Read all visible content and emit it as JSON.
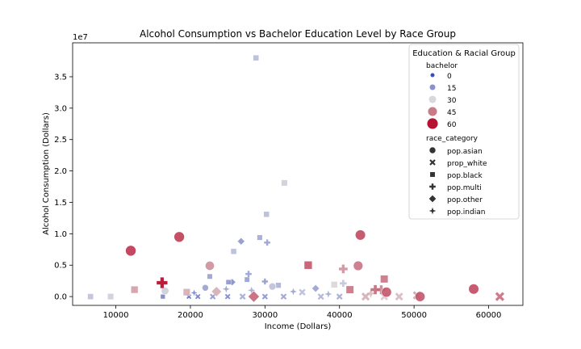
{
  "chart_data": {
    "type": "scatter",
    "title": "Alcohol Consumption vs Bachelor Education Level by Race Group",
    "xlabel": "Income (Dollars)",
    "ylabel": "Alcohol Consumption (Dollars)",
    "y_offset_label": "1e7",
    "xlim": [
      4200,
      64600
    ],
    "ylim": [
      -1400000,
      40400000
    ],
    "y_scale": 10000000,
    "x_ticks": [
      10000,
      20000,
      30000,
      40000,
      50000,
      60000
    ],
    "x_tick_labels": [
      "10000",
      "20000",
      "30000",
      "40000",
      "50000",
      "60000"
    ],
    "y_ticks": [
      0,
      5000000,
      10000000,
      15000000,
      20000000,
      25000000,
      30000000,
      35000000
    ],
    "y_tick_labels": [
      "0.0",
      "0.5",
      "1.0",
      "1.5",
      "2.0",
      "2.5",
      "3.0",
      "3.5"
    ],
    "grid": false,
    "legend": {
      "position": "top-right",
      "title": "Education & Racial Group",
      "hue_title": "bachelor",
      "hue_levels": [
        {
          "label": "0",
          "value": 0
        },
        {
          "label": "15",
          "value": 15
        },
        {
          "label": "30",
          "value": 30
        },
        {
          "label": "45",
          "value": 45
        },
        {
          "label": "60",
          "value": 60
        }
      ],
      "style_title": "race_category",
      "style_levels": [
        {
          "label": "pop.asian",
          "marker": "circle"
        },
        {
          "label": "prop_white",
          "marker": "x"
        },
        {
          "label": "pop.black",
          "marker": "square"
        },
        {
          "label": "pop.multi",
          "marker": "plus"
        },
        {
          "label": "pop.other",
          "marker": "diamond"
        },
        {
          "label": "pop.indian",
          "marker": "star"
        }
      ]
    },
    "colormap": "coolwarm",
    "colors": {
      "low": "#3b4cc0",
      "mid": "#dddddd",
      "high": "#b40426"
    },
    "points": [
      {
        "x": 12000,
        "y": 7300000,
        "bachelor": 55,
        "race": "pop.asian"
      },
      {
        "x": 18500,
        "y": 9500000,
        "bachelor": 54,
        "race": "pop.asian"
      },
      {
        "x": 42800,
        "y": 9800000,
        "bachelor": 52,
        "race": "pop.asian"
      },
      {
        "x": 22600,
        "y": 4900000,
        "bachelor": 42,
        "race": "pop.asian"
      },
      {
        "x": 42500,
        "y": 4900000,
        "bachelor": 46,
        "race": "pop.asian"
      },
      {
        "x": 58000,
        "y": 1200000,
        "bachelor": 52,
        "race": "pop.asian"
      },
      {
        "x": 50800,
        "y": 0,
        "bachelor": 50,
        "race": "pop.asian"
      },
      {
        "x": 46300,
        "y": 700000,
        "bachelor": 50,
        "race": "pop.asian"
      },
      {
        "x": 16600,
        "y": 900000,
        "bachelor": 28,
        "race": "pop.asian"
      },
      {
        "x": 22000,
        "y": 1400000,
        "bachelor": 18,
        "race": "pop.asian"
      },
      {
        "x": 31000,
        "y": 1600000,
        "bachelor": 25,
        "race": "pop.asian"
      },
      {
        "x": 61500,
        "y": 0,
        "bachelor": 47,
        "race": "prop_white"
      },
      {
        "x": 50400,
        "y": 200000,
        "bachelor": 40,
        "race": "prop_white"
      },
      {
        "x": 48000,
        "y": 0,
        "bachelor": 36,
        "race": "prop_white"
      },
      {
        "x": 46000,
        "y": 0,
        "bachelor": 34,
        "race": "prop_white"
      },
      {
        "x": 43500,
        "y": 0,
        "bachelor": 38,
        "race": "prop_white"
      },
      {
        "x": 40000,
        "y": 0,
        "bachelor": 20,
        "race": "prop_white"
      },
      {
        "x": 37500,
        "y": 0,
        "bachelor": 22,
        "race": "prop_white"
      },
      {
        "x": 35000,
        "y": 700000,
        "bachelor": 24,
        "race": "prop_white"
      },
      {
        "x": 32500,
        "y": 0,
        "bachelor": 18,
        "race": "prop_white"
      },
      {
        "x": 30000,
        "y": 0,
        "bachelor": 15,
        "race": "prop_white"
      },
      {
        "x": 27000,
        "y": 0,
        "bachelor": 20,
        "race": "prop_white"
      },
      {
        "x": 25000,
        "y": 0,
        "bachelor": 12,
        "race": "prop_white"
      },
      {
        "x": 23000,
        "y": 0,
        "bachelor": 16,
        "race": "prop_white"
      },
      {
        "x": 21000,
        "y": 0,
        "bachelor": 10,
        "race": "prop_white"
      },
      {
        "x": 19800,
        "y": 0,
        "bachelor": 6,
        "race": "prop_white"
      },
      {
        "x": 28800,
        "y": 38000000,
        "bachelor": 24,
        "race": "pop.black"
      },
      {
        "x": 32600,
        "y": 18100000,
        "bachelor": 28,
        "race": "pop.black"
      },
      {
        "x": 30200,
        "y": 13100000,
        "bachelor": 24,
        "race": "pop.black"
      },
      {
        "x": 29300,
        "y": 9400000,
        "bachelor": 20,
        "race": "pop.black"
      },
      {
        "x": 25800,
        "y": 7200000,
        "bachelor": 24,
        "race": "pop.black"
      },
      {
        "x": 35800,
        "y": 5000000,
        "bachelor": 50,
        "race": "pop.black"
      },
      {
        "x": 22600,
        "y": 3200000,
        "bachelor": 18,
        "race": "pop.black"
      },
      {
        "x": 46000,
        "y": 2800000,
        "bachelor": 46,
        "race": "pop.black"
      },
      {
        "x": 25100,
        "y": 2300000,
        "bachelor": 16,
        "race": "pop.black"
      },
      {
        "x": 31800,
        "y": 1800000,
        "bachelor": 22,
        "race": "pop.black"
      },
      {
        "x": 39300,
        "y": 1900000,
        "bachelor": 32,
        "race": "pop.black"
      },
      {
        "x": 41400,
        "y": 1100000,
        "bachelor": 46,
        "race": "pop.black"
      },
      {
        "x": 12500,
        "y": 1100000,
        "bachelor": 40,
        "race": "pop.black"
      },
      {
        "x": 6600,
        "y": 0,
        "bachelor": 25,
        "race": "pop.black"
      },
      {
        "x": 9300,
        "y": 0,
        "bachelor": 28,
        "race": "pop.black"
      },
      {
        "x": 16300,
        "y": 0,
        "bachelor": 12,
        "race": "pop.black"
      },
      {
        "x": 19500,
        "y": 700000,
        "bachelor": 38,
        "race": "pop.black"
      },
      {
        "x": 27600,
        "y": 2700000,
        "bachelor": 18,
        "race": "pop.black"
      },
      {
        "x": 16200,
        "y": 2200000,
        "bachelor": 62,
        "race": "pop.multi"
      },
      {
        "x": 30300,
        "y": 8600000,
        "bachelor": 18,
        "race": "pop.multi"
      },
      {
        "x": 27800,
        "y": 3600000,
        "bachelor": 18,
        "race": "pop.multi"
      },
      {
        "x": 30000,
        "y": 2400000,
        "bachelor": 16,
        "race": "pop.multi"
      },
      {
        "x": 40500,
        "y": 4400000,
        "bachelor": 42,
        "race": "pop.multi"
      },
      {
        "x": 40500,
        "y": 2100000,
        "bachelor": 26,
        "race": "pop.multi"
      },
      {
        "x": 44800,
        "y": 1100000,
        "bachelor": 48,
        "race": "pop.multi"
      },
      {
        "x": 45600,
        "y": 1100000,
        "bachelor": 44,
        "race": "pop.multi"
      },
      {
        "x": 26800,
        "y": 8800000,
        "bachelor": 16,
        "race": "pop.other"
      },
      {
        "x": 25600,
        "y": 2300000,
        "bachelor": 14,
        "race": "pop.other"
      },
      {
        "x": 36800,
        "y": 1300000,
        "bachelor": 18,
        "race": "pop.other"
      },
      {
        "x": 23500,
        "y": 800000,
        "bachelor": 38,
        "race": "pop.other"
      },
      {
        "x": 28500,
        "y": 0,
        "bachelor": 48,
        "race": "pop.other"
      },
      {
        "x": 20500,
        "y": 600000,
        "bachelor": 12,
        "race": "pop.indian"
      },
      {
        "x": 24800,
        "y": 1200000,
        "bachelor": 18,
        "race": "pop.indian"
      },
      {
        "x": 28200,
        "y": 1000000,
        "bachelor": 20,
        "race": "pop.indian"
      },
      {
        "x": 33800,
        "y": 800000,
        "bachelor": 18,
        "race": "pop.indian"
      },
      {
        "x": 38500,
        "y": 400000,
        "bachelor": 20,
        "race": "pop.indian"
      },
      {
        "x": 44200,
        "y": 500000,
        "bachelor": 36,
        "race": "pop.indian"
      }
    ]
  }
}
